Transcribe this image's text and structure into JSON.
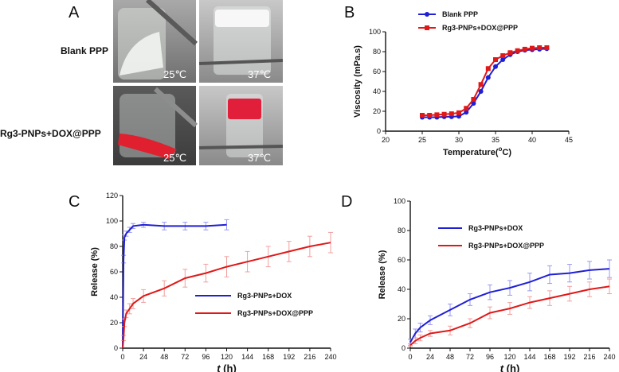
{
  "panel_a": {
    "letter": "A",
    "rows": [
      {
        "label": "Blank PPP",
        "temps": [
          "25℃",
          "37℃"
        ]
      },
      {
        "label": "Rg3-PNPs+DOX@PPP",
        "temps": [
          "25℃",
          "37℃"
        ]
      }
    ]
  },
  "chart_data": [
    {
      "id": "B",
      "panel_letter": "B",
      "type": "line",
      "xlabel_main": "Temperature(",
      "xlabel_sup": "o",
      "xlabel_tail": "C)",
      "ylabel": "Viscosity (mPa.s)",
      "xlim": [
        20,
        45
      ],
      "ylim": [
        0,
        100
      ],
      "xticks": [
        20,
        25,
        30,
        35,
        40,
        45
      ],
      "yticks": [
        0,
        20,
        40,
        60,
        80,
        100
      ],
      "legend_position": "top-left",
      "series": [
        {
          "name": "Blank PPP",
          "color": "#1f1fd6",
          "marker": "circle",
          "x": [
            25,
            26,
            27,
            28,
            29,
            30,
            31,
            32,
            33,
            34,
            35,
            36,
            37,
            38,
            39,
            40,
            41,
            42
          ],
          "y": [
            14,
            14,
            14,
            14.5,
            14.5,
            15,
            19,
            28,
            40,
            54,
            65,
            72,
            77,
            80,
            81.5,
            82,
            82.5,
            83
          ]
        },
        {
          "name": "Rg3-PNPs+DOX@PPP",
          "color": "#e01818",
          "marker": "square",
          "x": [
            25,
            26,
            27,
            28,
            29,
            30,
            31,
            32,
            33,
            34,
            35,
            36,
            37,
            38,
            39,
            40,
            41,
            42
          ],
          "y": [
            16,
            16,
            16.5,
            17,
            17.5,
            18.5,
            23,
            32,
            47,
            63,
            72,
            76,
            79,
            81,
            82.5,
            83.5,
            84,
            84
          ]
        }
      ]
    },
    {
      "id": "C",
      "panel_letter": "C",
      "type": "line",
      "xlabel": "t",
      "xunit": " (h)",
      "ylabel": "Release (%)",
      "xlim": [
        0,
        240
      ],
      "ylim": [
        0,
        120
      ],
      "xticks": [
        0,
        24,
        48,
        72,
        96,
        120,
        144,
        168,
        192,
        216,
        240
      ],
      "yticks": [
        0,
        20,
        40,
        60,
        80,
        100,
        120
      ],
      "legend_position": "bottom-right",
      "series": [
        {
          "name": "Rg3-PNPs+DOX",
          "color": "#1f1fd6",
          "x": [
            0,
            1,
            2,
            4,
            8,
            12,
            24,
            48,
            72,
            96,
            120
          ],
          "y": [
            0,
            70,
            87,
            90,
            93,
            96,
            97,
            96,
            96,
            96,
            97
          ],
          "err": [
            0,
            3,
            2,
            2,
            2,
            2,
            2,
            3,
            3,
            3,
            4
          ]
        },
        {
          "name": "Rg3-PNPs+DOX@PPP",
          "color": "#e01818",
          "x": [
            0,
            1,
            2,
            4,
            8,
            12,
            24,
            48,
            72,
            96,
            120,
            144,
            168,
            192,
            216,
            240
          ],
          "y": [
            0,
            8,
            20,
            27,
            31,
            35,
            41,
            47,
            55,
            59,
            64,
            68,
            72,
            76,
            80,
            83
          ],
          "err": [
            0,
            2,
            3,
            3,
            4,
            4,
            5,
            6,
            7,
            7,
            8,
            8,
            8,
            8,
            8,
            8
          ]
        }
      ]
    },
    {
      "id": "D",
      "panel_letter": "D",
      "type": "line",
      "xlabel": "t",
      "xunit": " (h)",
      "ylabel": "Release (%)",
      "xlim": [
        0,
        240
      ],
      "ylim": [
        0,
        100
      ],
      "xticks": [
        0,
        24,
        48,
        72,
        96,
        120,
        144,
        168,
        192,
        216,
        240
      ],
      "yticks": [
        0,
        20,
        40,
        60,
        80,
        100
      ],
      "legend_position": "top-left",
      "series": [
        {
          "name": "Rg3-PNPs+DOX",
          "color": "#1f1fd6",
          "x": [
            0,
            6,
            12,
            24,
            48,
            72,
            96,
            120,
            144,
            168,
            192,
            216,
            240
          ],
          "y": [
            4,
            10,
            14,
            19,
            26,
            33,
            38,
            41,
            45,
            50,
            51,
            53,
            54
          ],
          "err": [
            2,
            3,
            3,
            3,
            4,
            4,
            5,
            5,
            6,
            6,
            6,
            6,
            6
          ]
        },
        {
          "name": "Rg3-PNPs+DOX@PPP",
          "color": "#e01818",
          "x": [
            0,
            6,
            12,
            24,
            48,
            72,
            96,
            120,
            144,
            168,
            192,
            216,
            240
          ],
          "y": [
            2,
            5,
            7,
            10,
            12,
            17,
            24,
            27,
            31,
            34,
            37,
            40,
            42
          ],
          "err": [
            1,
            2,
            2,
            2,
            3,
            3,
            4,
            4,
            4,
            5,
            5,
            5,
            5
          ]
        }
      ]
    }
  ]
}
